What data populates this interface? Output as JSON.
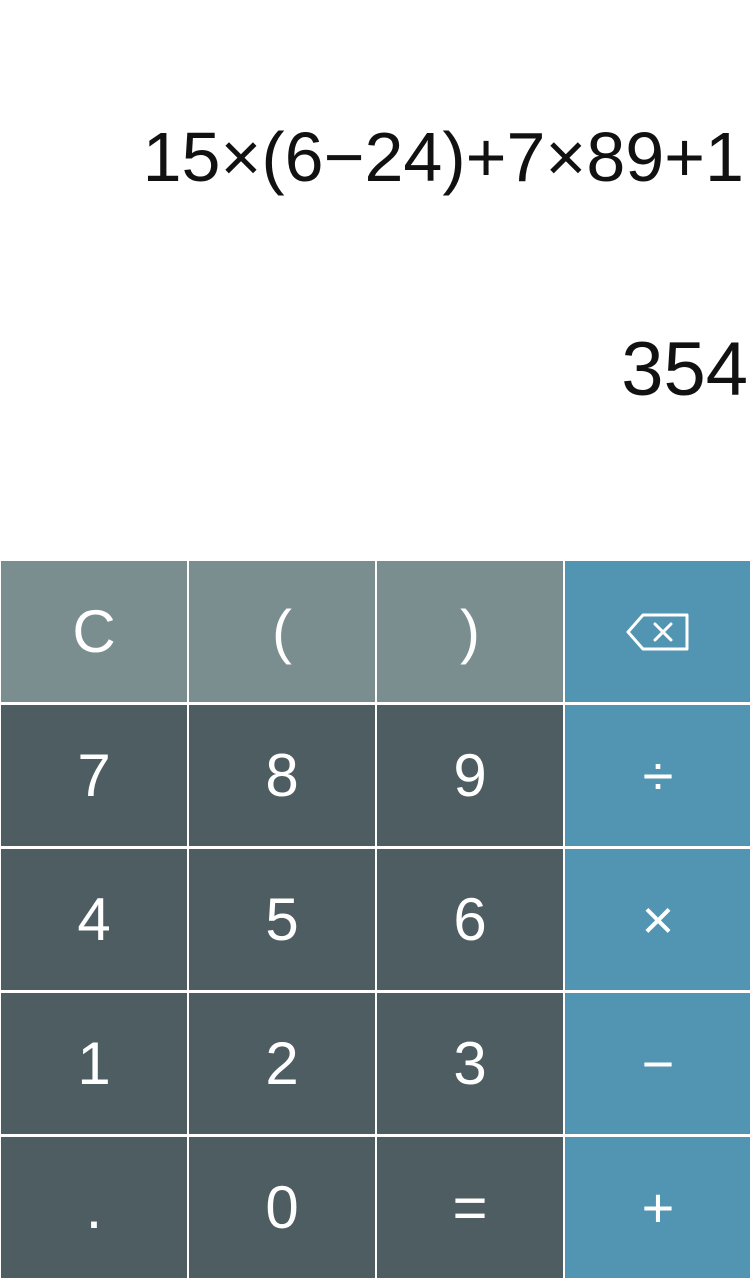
{
  "display": {
    "expression": "15×(6−24)+7×89+1",
    "result": "354"
  },
  "keys": {
    "clear": "C",
    "open_paren": "(",
    "close_paren": ")",
    "backspace_icon": "backspace-icon",
    "seven": "7",
    "eight": "8",
    "nine": "9",
    "divide": "÷",
    "four": "4",
    "five": "5",
    "six": "6",
    "multiply": "×",
    "one": "1",
    "two": "2",
    "three": "3",
    "minus": "−",
    "dot": ".",
    "zero": "0",
    "equals": "=",
    "plus": "+"
  },
  "colors": {
    "function_keys": "#7a8d8f",
    "number_keys": "#4e5d61",
    "operator_keys": "#5195b3",
    "background": "#ffffff"
  }
}
